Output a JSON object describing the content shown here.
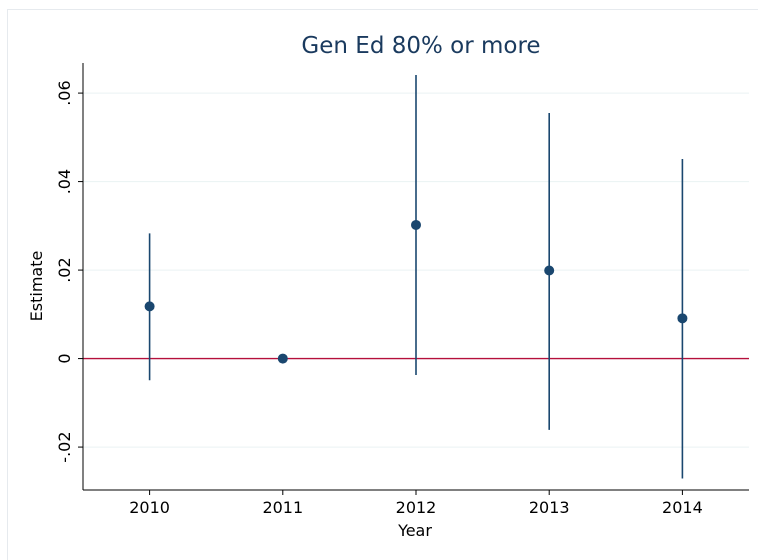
{
  "chart_data": {
    "type": "scatter",
    "title": "Gen Ed 80% or more",
    "xlabel": "Year",
    "ylabel": "Estimate",
    "x_ticks": [
      "2010",
      "2011",
      "2012",
      "2013",
      "2014"
    ],
    "y_ticks": [
      "-.02",
      "0",
      ".02",
      ".04",
      ".06"
    ],
    "y_tick_values": [
      -0.02,
      0,
      0.02,
      0.04,
      0.06
    ],
    "xlim": [
      2009.5,
      2014.5
    ],
    "ylim": [
      -0.0297,
      0.0668
    ],
    "grid": true,
    "legend": "none",
    "reference_line": {
      "y": 0,
      "color": "#b5103c"
    },
    "series": [
      {
        "x": [
          2010,
          2011,
          2012,
          2013,
          2014
        ],
        "estimate": [
          0.0118,
          0.0,
          0.0302,
          0.0199,
          0.0091
        ],
        "ci_low": [
          -0.0049,
          0.0,
          -0.0037,
          -0.0161,
          -0.0271
        ],
        "ci_high": [
          0.0283,
          0.0,
          0.0641,
          0.0555,
          0.0451
        ],
        "color": "#1a476f"
      }
    ]
  }
}
